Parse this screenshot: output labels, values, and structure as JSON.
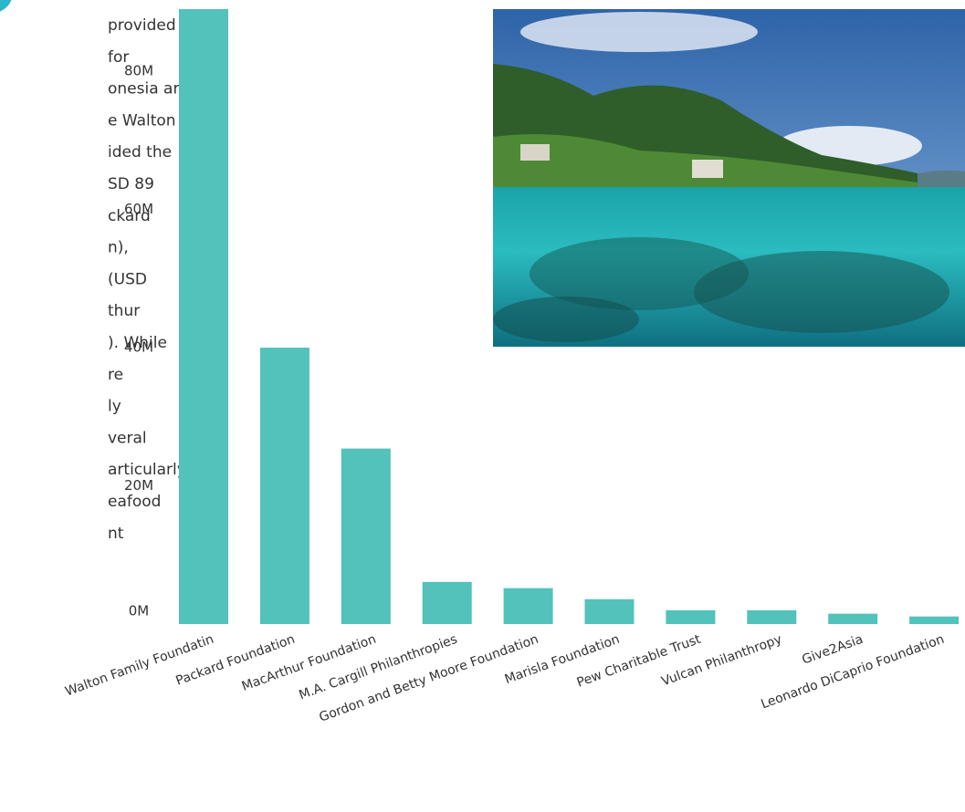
{
  "text_lines": [
    "provided",
    "for",
    "onesia are",
    "e Walton",
    "ided the",
    "SD 89",
    "ckard",
    "n),",
    "(USD",
    "thur",
    "). While",
    "re",
    "ly",
    "veral",
    "articularly",
    "eafood",
    "nt"
  ],
  "chart_data": {
    "type": "bar",
    "categories": [
      "Walton Family Foundatin",
      "Packard Foundation",
      "MacArthur Foundation",
      "M.A. Cargill Philanthropies",
      "Gordon and Betty Moore Foundation",
      "Marisla Foundation",
      "Pew Charitable Trust",
      "Vulcan Philanthropy",
      "Give2Asia",
      "Leonardo DiCaprio Foundation"
    ],
    "values": [
      89,
      40,
      25.4,
      6.1,
      5.2,
      3.6,
      2,
      2,
      1.5,
      1.1
    ],
    "color": "#52c2bb",
    "ylim": [
      0,
      89
    ],
    "yticks": [
      {
        "value": 0,
        "label": "0M"
      },
      {
        "value": 20,
        "label": "20M"
      },
      {
        "value": 40,
        "label": "40M"
      },
      {
        "value": 60,
        "label": "60M"
      },
      {
        "value": 80,
        "label": "80M"
      }
    ]
  }
}
